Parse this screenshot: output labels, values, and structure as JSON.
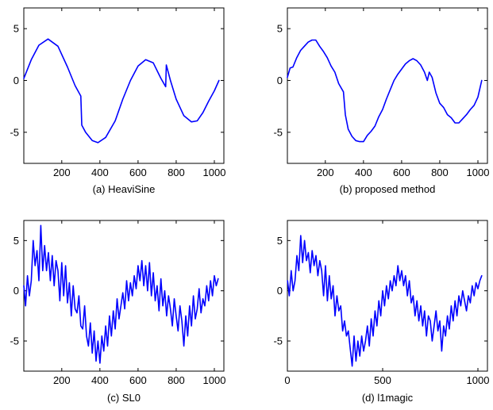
{
  "chart_data": [
    {
      "type": "line",
      "caption": "(a) HeaviSine",
      "xlim": [
        1,
        1050
      ],
      "ylim": [
        -8,
        7
      ],
      "xticks": [
        200,
        400,
        600,
        800,
        1000
      ],
      "yticks": [
        5,
        0,
        -5
      ],
      "series": [
        {
          "color": "#0000ff",
          "x": [
            1,
            40,
            80,
            128,
            180,
            230,
            270,
            300,
            305,
            325,
            360,
            390,
            430,
            480,
            520,
            560,
            600,
            640,
            680,
            720,
            745,
            748,
            770,
            800,
            840,
            880,
            910,
            940,
            970,
            1000,
            1024
          ],
          "y": [
            0.2,
            2.0,
            3.4,
            4.0,
            3.3,
            1.3,
            -0.5,
            -1.5,
            -4.3,
            -5.0,
            -5.8,
            -6.0,
            -5.5,
            -3.9,
            -1.8,
            0.0,
            1.4,
            2.0,
            1.7,
            0.2,
            -0.6,
            1.5,
            0.0,
            -1.8,
            -3.4,
            -4.0,
            -3.9,
            -3.1,
            -2.0,
            -1.0,
            0.0
          ]
        }
      ]
    },
    {
      "type": "line",
      "caption": "(b) proposed method",
      "xlim": [
        1,
        1050
      ],
      "ylim": [
        -8,
        7
      ],
      "xticks": [
        200,
        400,
        600,
        800,
        1000
      ],
      "yticks": [
        5,
        0,
        -5
      ],
      "series": [
        {
          "color": "#0000ff",
          "x": [
            1,
            15,
            30,
            50,
            70,
            90,
            110,
            130,
            150,
            170,
            190,
            210,
            230,
            250,
            270,
            295,
            305,
            320,
            340,
            360,
            380,
            400,
            420,
            440,
            460,
            480,
            500,
            520,
            540,
            560,
            580,
            600,
            620,
            640,
            660,
            680,
            700,
            720,
            735,
            745,
            760,
            780,
            800,
            820,
            840,
            860,
            880,
            900,
            920,
            940,
            960,
            980,
            1000,
            1010,
            1020
          ],
          "y": [
            0.3,
            1.2,
            1.3,
            2.2,
            2.9,
            3.3,
            3.7,
            3.9,
            3.9,
            3.3,
            2.8,
            2.2,
            1.4,
            0.8,
            -0.3,
            -1.1,
            -3.3,
            -4.7,
            -5.4,
            -5.8,
            -5.9,
            -5.9,
            -5.3,
            -4.9,
            -4.4,
            -3.5,
            -2.8,
            -1.8,
            -0.9,
            0.0,
            0.6,
            1.1,
            1.6,
            1.9,
            2.1,
            1.9,
            1.5,
            0.8,
            0.0,
            0.8,
            0.3,
            -1.2,
            -2.2,
            -2.6,
            -3.3,
            -3.6,
            -4.1,
            -4.1,
            -3.7,
            -3.3,
            -2.8,
            -2.4,
            -1.6,
            -0.8,
            0.0
          ]
        }
      ]
    },
    {
      "type": "line",
      "caption": "(c) SL0",
      "xlim": [
        1,
        1050
      ],
      "ylim": [
        -8,
        7
      ],
      "xticks": [
        200,
        400,
        600,
        800,
        1000
      ],
      "yticks": [
        5,
        0,
        -5
      ],
      "series": [
        {
          "color": "#0000ff",
          "x": [
            1,
            10,
            20,
            30,
            40,
            50,
            60,
            70,
            80,
            90,
            100,
            110,
            120,
            130,
            140,
            150,
            160,
            170,
            180,
            190,
            200,
            210,
            220,
            230,
            240,
            250,
            260,
            270,
            280,
            290,
            300,
            310,
            320,
            330,
            340,
            350,
            360,
            370,
            380,
            390,
            400,
            410,
            420,
            430,
            440,
            450,
            460,
            470,
            480,
            490,
            500,
            510,
            520,
            530,
            540,
            550,
            560,
            570,
            580,
            590,
            600,
            610,
            620,
            630,
            640,
            650,
            660,
            670,
            680,
            690,
            700,
            710,
            720,
            730,
            740,
            750,
            760,
            770,
            780,
            790,
            800,
            810,
            820,
            830,
            840,
            850,
            860,
            870,
            880,
            890,
            900,
            910,
            920,
            930,
            940,
            950,
            960,
            970,
            980,
            990,
            1000,
            1010,
            1020
          ],
          "y": [
            0.5,
            -1.5,
            1.5,
            -0.5,
            1.0,
            5.0,
            2.5,
            4.0,
            1.0,
            6.5,
            2.0,
            4.5,
            2.0,
            3.8,
            1.0,
            3.5,
            0.5,
            3.0,
            2.0,
            -1.0,
            2.8,
            -0.5,
            2.5,
            -1.2,
            0.8,
            -2.5,
            0.5,
            -1.8,
            -2.2,
            -0.5,
            -3.5,
            -3.8,
            -1.5,
            -4.5,
            -5.5,
            -3.2,
            -6.2,
            -4.0,
            -7.0,
            -5.0,
            -7.2,
            -4.5,
            -6.0,
            -3.5,
            -5.5,
            -2.5,
            -4.5,
            -2.0,
            -3.8,
            -0.8,
            -2.8,
            -1.5,
            -0.2,
            -1.8,
            1.0,
            -1.0,
            0.8,
            -0.5,
            1.5,
            0.2,
            2.5,
            1.0,
            3.0,
            0.5,
            2.5,
            0.0,
            2.8,
            -0.5,
            1.8,
            -1.0,
            0.5,
            -2.0,
            1.2,
            -1.5,
            0.0,
            -2.5,
            -0.5,
            -1.8,
            -3.5,
            -0.8,
            -2.5,
            -4.0,
            -1.5,
            -3.0,
            -5.5,
            -2.5,
            -4.5,
            -1.5,
            -3.5,
            -0.5,
            -2.8,
            -1.8,
            0.2,
            -2.2,
            -0.8,
            -1.5,
            0.5,
            -1.0,
            1.0,
            -0.5,
            1.5,
            0.5,
            1.2
          ]
        }
      ]
    },
    {
      "type": "line",
      "caption": "(d) l1magic",
      "xlim": [
        0,
        1050
      ],
      "ylim": [
        -8,
        7
      ],
      "xticks": [
        0,
        500,
        1000
      ],
      "yticks": [
        5,
        0,
        -5
      ],
      "series": [
        {
          "color": "#0000ff",
          "x": [
            1,
            10,
            20,
            30,
            40,
            50,
            60,
            70,
            80,
            90,
            100,
            110,
            120,
            130,
            140,
            150,
            160,
            170,
            180,
            190,
            200,
            210,
            220,
            230,
            240,
            250,
            260,
            270,
            280,
            290,
            300,
            310,
            320,
            330,
            340,
            350,
            360,
            370,
            380,
            390,
            400,
            410,
            420,
            430,
            440,
            450,
            460,
            470,
            480,
            490,
            500,
            510,
            520,
            530,
            540,
            550,
            560,
            570,
            580,
            590,
            600,
            610,
            620,
            630,
            640,
            650,
            660,
            670,
            680,
            690,
            700,
            710,
            720,
            730,
            740,
            750,
            760,
            770,
            780,
            790,
            800,
            810,
            820,
            830,
            840,
            850,
            860,
            870,
            880,
            890,
            900,
            910,
            920,
            930,
            940,
            950,
            960,
            970,
            980,
            990,
            1000,
            1010,
            1020
          ],
          "y": [
            1.0,
            -0.5,
            2.0,
            0.0,
            1.0,
            3.5,
            2.0,
            5.5,
            2.8,
            5.0,
            3.0,
            3.8,
            1.8,
            4.0,
            2.5,
            3.5,
            1.5,
            3.0,
            2.0,
            -0.5,
            2.5,
            -1.0,
            1.5,
            -0.8,
            0.5,
            -2.5,
            -0.5,
            -2.0,
            -1.5,
            -4.0,
            -3.0,
            -4.5,
            -4.0,
            -5.8,
            -7.5,
            -4.5,
            -7.0,
            -5.0,
            -6.5,
            -4.5,
            -6.0,
            -5.0,
            -3.5,
            -5.5,
            -2.8,
            -4.5,
            -2.0,
            -3.5,
            -1.0,
            -2.5,
            0.0,
            -1.5,
            0.5,
            -0.8,
            1.0,
            0.0,
            1.5,
            0.5,
            2.5,
            1.0,
            2.0,
            0.5,
            1.5,
            -0.5,
            1.0,
            -1.2,
            -0.5,
            -2.5,
            -1.0,
            -3.0,
            -1.5,
            -3.5,
            -2.0,
            -4.5,
            -2.5,
            -3.0,
            -5.0,
            -3.5,
            -2.0,
            -4.0,
            -3.0,
            -6.0,
            -3.5,
            -4.5,
            -2.5,
            -3.8,
            -1.5,
            -3.0,
            -1.0,
            -2.5,
            -0.5,
            -1.5,
            0.0,
            -1.0,
            -2.0,
            -0.5,
            -1.2,
            0.5,
            -0.5,
            0.8,
            0.2,
            1.0,
            1.5
          ]
        }
      ]
    }
  ]
}
